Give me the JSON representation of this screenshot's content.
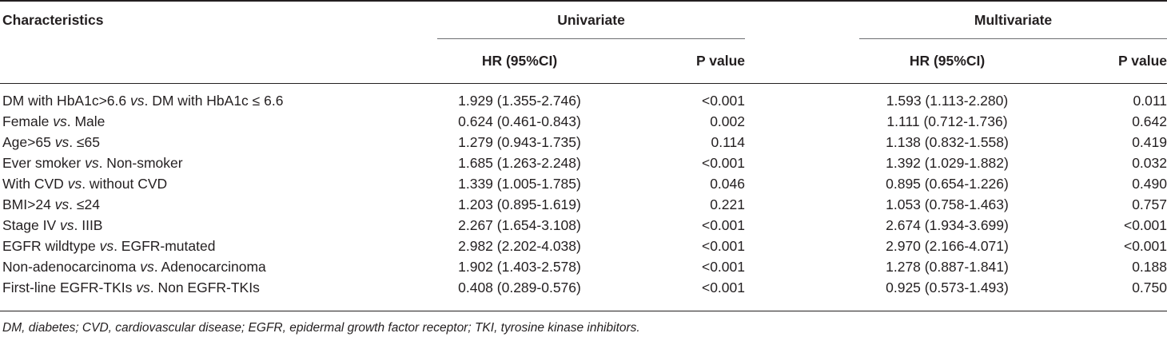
{
  "table": {
    "headers": {
      "characteristics": "Characteristics",
      "univariate": "Univariate",
      "multivariate": "Multivariate",
      "hr_label": "HR (95%CI)",
      "p_label": "P value"
    },
    "rows": [
      {
        "pre": "DM with HbA1c>6.6 ",
        "vs": "vs",
        "post": ". DM with HbA1c ≤ 6.6",
        "uni_hr": "1.929 (1.355-2.746)",
        "uni_p": "<0.001",
        "multi_hr": "1.593 (1.113-2.280)",
        "multi_p": "0.011"
      },
      {
        "pre": "Female ",
        "vs": "vs",
        "post": ". Male",
        "uni_hr": "0.624 (0.461-0.843)",
        "uni_p": "0.002",
        "multi_hr": "1.111 (0.712-1.736)",
        "multi_p": "0.642"
      },
      {
        "pre": "Age>65 ",
        "vs": "vs",
        "post": ". ≤65",
        "uni_hr": "1.279 (0.943-1.735)",
        "uni_p": "0.114",
        "multi_hr": "1.138 (0.832-1.558)",
        "multi_p": "0.419"
      },
      {
        "pre": "Ever smoker ",
        "vs": "vs",
        "post": ". Non-smoker",
        "uni_hr": "1.685 (1.263-2.248)",
        "uni_p": "<0.001",
        "multi_hr": "1.392 (1.029-1.882)",
        "multi_p": "0.032"
      },
      {
        "pre": "With CVD ",
        "vs": "vs",
        "post": ". without CVD",
        "uni_hr": "1.339 (1.005-1.785)",
        "uni_p": "0.046",
        "multi_hr": "0.895 (0.654-1.226)",
        "multi_p": "0.490"
      },
      {
        "pre": "BMI>24 ",
        "vs": "vs",
        "post": ". ≤24",
        "uni_hr": "1.203 (0.895-1.619)",
        "uni_p": "0.221",
        "multi_hr": "1.053 (0.758-1.463)",
        "multi_p": "0.757"
      },
      {
        "pre": "Stage IV ",
        "vs": "vs",
        "post": ". IIIB",
        "uni_hr": "2.267 (1.654-3.108)",
        "uni_p": "<0.001",
        "multi_hr": "2.674 (1.934-3.699)",
        "multi_p": "<0.001"
      },
      {
        "pre": "EGFR wildtype ",
        "vs": "vs",
        "post": ". EGFR-mutated",
        "uni_hr": "2.982 (2.202-4.038)",
        "uni_p": "<0.001",
        "multi_hr": "2.970 (2.166-4.071)",
        "multi_p": "<0.001"
      },
      {
        "pre": "Non-adenocarcinoma ",
        "vs": "vs",
        "post": ". Adenocarcinoma",
        "uni_hr": "1.902 (1.403-2.578)",
        "uni_p": "<0.001",
        "multi_hr": "1.278 (0.887-1.841)",
        "multi_p": "0.188"
      },
      {
        "pre": "First-line EGFR-TKIs ",
        "vs": "vs",
        "post": ". Non EGFR-TKIs",
        "uni_hr": "0.408 (0.289-0.576)",
        "uni_p": "<0.001",
        "multi_hr": "0.925 (0.573-1.493)",
        "multi_p": "0.750"
      }
    ]
  },
  "footnote": "DM, diabetes; CVD, cardiovascular disease; EGFR, epidermal growth factor receptor; TKI, tyrosine kinase inhibitors."
}
